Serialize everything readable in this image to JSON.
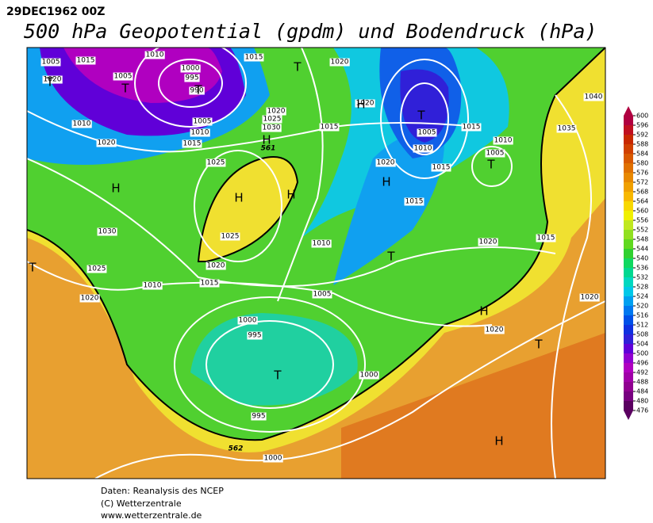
{
  "header": {
    "date": "29DEC1962 00Z",
    "title": "500 hPa Geopotential (gpdm) und Bodendruck (hPa)"
  },
  "colorbar": {
    "ticks": [
      600,
      596,
      592,
      588,
      584,
      580,
      576,
      572,
      568,
      564,
      560,
      556,
      552,
      548,
      544,
      540,
      536,
      532,
      528,
      524,
      520,
      516,
      512,
      508,
      504,
      500,
      496,
      492,
      488,
      484,
      480,
      476
    ],
    "colors": [
      "#b00040",
      "#c01020",
      "#c82800",
      "#d04000",
      "#d85800",
      "#e07000",
      "#e88800",
      "#f0a000",
      "#f8b800",
      "#f8d800",
      "#f0f000",
      "#c0e820",
      "#90e020",
      "#60d820",
      "#30d030",
      "#10d860",
      "#00d890",
      "#00d8c0",
      "#00c8e8",
      "#00a0f0",
      "#0078f0",
      "#0050e8",
      "#1030e0",
      "#3020d8",
      "#6000d8",
      "#9000d0",
      "#b000c0",
      "#a000a8",
      "#900090",
      "#780080",
      "#5a0060"
    ]
  },
  "map_labels": [
    "1005",
    "1015",
    "1010",
    "1000",
    "995",
    "990",
    "1005",
    "1020",
    "1010",
    "1020",
    "1005",
    "1010",
    "1015",
    "1015",
    "1020",
    "1025",
    "1030",
    "1025",
    "1015",
    "1020",
    "1020",
    "1005",
    "1010",
    "1015",
    "1015",
    "1020",
    "1005",
    "1010",
    "1015",
    "1010",
    "1020",
    "1015",
    "1035",
    "1040",
    "1030",
    "1025",
    "1020",
    "1010",
    "1015",
    "1025",
    "1020",
    "1005",
    "1000",
    "995",
    "995",
    "1000",
    "1020",
    "1020",
    "1000",
    "561",
    "562"
  ],
  "pressure_centers": [
    "T",
    "T",
    "T",
    "T",
    "H",
    "T",
    "T",
    "H",
    "H",
    "H",
    "H",
    "H",
    "T",
    "H",
    "T",
    "T",
    "T",
    "H"
  ],
  "footer": [
    "Daten: Reanalysis des NCEP",
    "(C) Wetterzentrale",
    "www.wetterzentrale.de"
  ]
}
